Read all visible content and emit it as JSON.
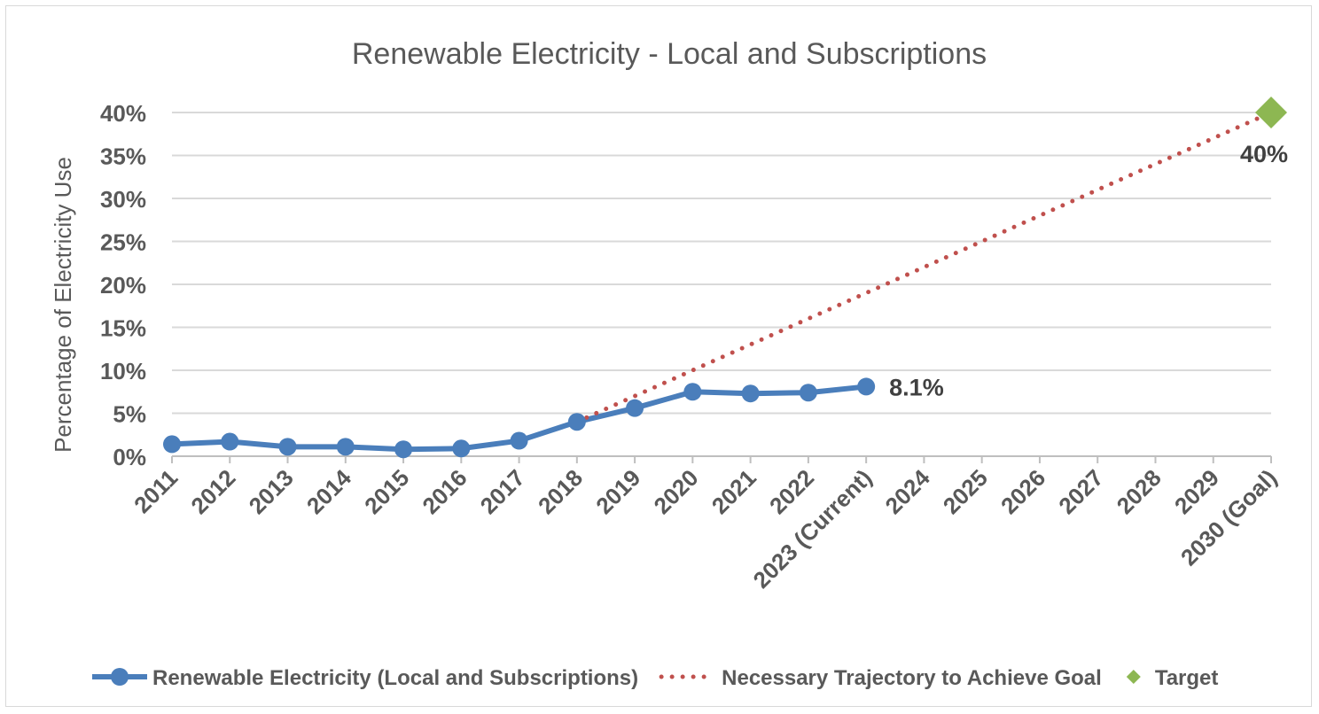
{
  "chart_data": {
    "type": "line",
    "title": "Renewable Electricity - Local and Subscriptions",
    "xlabel": "",
    "ylabel": "Percentage of Electricity Use",
    "categories": [
      "2011",
      "2012",
      "2013",
      "2014",
      "2015",
      "2016",
      "2017",
      "2018",
      "2019",
      "2020",
      "2021",
      "2022",
      "2023 (Current)",
      "2024",
      "2025",
      "2026",
      "2027",
      "2028",
      "2029",
      "2030 (Goal)"
    ],
    "y_ticks": [
      "0%",
      "5%",
      "10%",
      "15%",
      "20%",
      "25%",
      "30%",
      "35%",
      "40%"
    ],
    "ylim": [
      0,
      40
    ],
    "grid": true,
    "legend_position": "bottom",
    "series": [
      {
        "name": "Renewable Electricity (Local and Subscriptions)",
        "style": "line-with-markers",
        "color": "#4a7ebb",
        "values": [
          1.4,
          1.7,
          1.1,
          1.1,
          0.8,
          0.9,
          1.8,
          4.0,
          5.6,
          7.5,
          7.3,
          7.4,
          8.1,
          null,
          null,
          null,
          null,
          null,
          null,
          null
        ]
      },
      {
        "name": "Necessary Trajectory to Achieve Goal",
        "style": "dotted-line",
        "color": "#c0504d",
        "values": [
          null,
          null,
          null,
          null,
          null,
          null,
          null,
          4.0,
          7.0,
          10.0,
          13.0,
          16.0,
          19.0,
          22.0,
          25.0,
          28.0,
          31.0,
          34.0,
          37.0,
          40.0
        ]
      },
      {
        "name": "Target",
        "style": "diamond-marker",
        "color": "#8db752",
        "values": [
          null,
          null,
          null,
          null,
          null,
          null,
          null,
          null,
          null,
          null,
          null,
          null,
          null,
          null,
          null,
          null,
          null,
          null,
          null,
          40
        ]
      }
    ],
    "annotations": [
      {
        "text": "8.1%",
        "category": "2023 (Current)",
        "series": "Renewable Electricity (Local and Subscriptions)"
      },
      {
        "text": "40%",
        "category": "2030 (Goal)",
        "series": "Target"
      }
    ]
  }
}
